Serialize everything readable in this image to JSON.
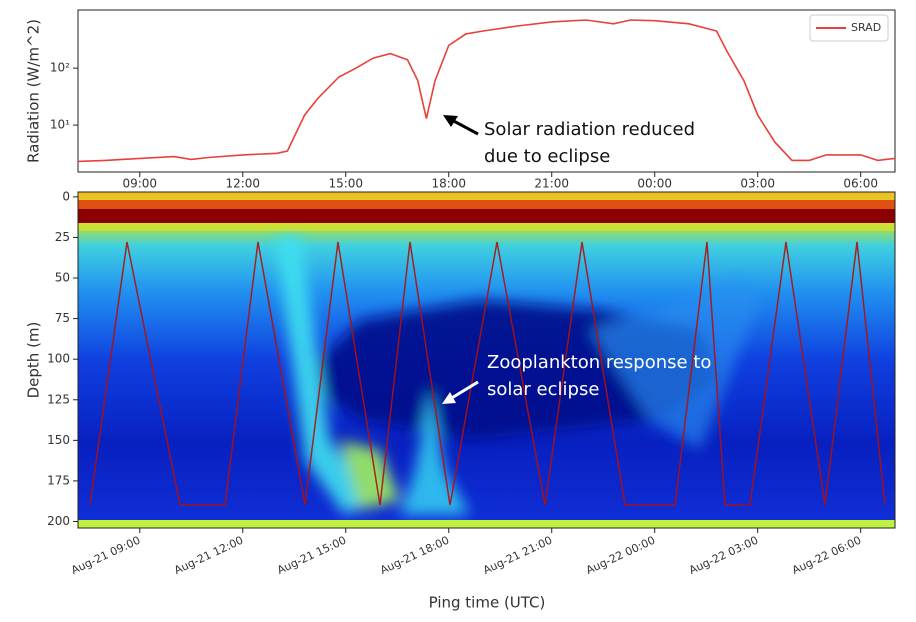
{
  "chart_data": [
    {
      "type": "line",
      "ylabel": "Radiation (W/m^2)",
      "log_y": true,
      "legend": "upper right",
      "series_name": "SRAD",
      "color": "#e8403a",
      "x": [
        7.2,
        8,
        9,
        10,
        10.5,
        11,
        12,
        13,
        13.3,
        13.8,
        14.2,
        14.8,
        15.3,
        15.8,
        16.3,
        16.8,
        17.1,
        17.35,
        17.6,
        18,
        18.5,
        19,
        20,
        21,
        22,
        22.8,
        23.3,
        24,
        25,
        25.8,
        26.1,
        26.6,
        27,
        27.5,
        28,
        28.5,
        29,
        30,
        30.5,
        31
      ],
      "values": [
        2.3,
        2.4,
        2.6,
        2.8,
        2.5,
        2.7,
        3.0,
        3.2,
        3.5,
        15,
        30,
        70,
        100,
        150,
        180,
        140,
        60,
        13,
        60,
        250,
        400,
        450,
        550,
        650,
        700,
        600,
        700,
        680,
        600,
        450,
        200,
        60,
        15,
        5,
        2.4,
        2.4,
        3,
        3,
        2.4,
        2.6
      ],
      "xlim": [
        7.2,
        31.0
      ],
      "xticks": [
        {
          "value": 9,
          "label": "09:00"
        },
        {
          "value": 12,
          "label": "12:00"
        },
        {
          "value": 15,
          "label": "15:00"
        },
        {
          "value": 18,
          "label": "18:00"
        },
        {
          "value": 21,
          "label": "21:00"
        },
        {
          "value": 24,
          "label": "00:00"
        },
        {
          "value": 27,
          "label": "03:00"
        },
        {
          "value": 30,
          "label": "06:00"
        }
      ],
      "ylim": [
        1.5,
        1050
      ],
      "yticks": [
        {
          "value": 10,
          "label": "10¹"
        },
        {
          "value": 100,
          "label": "10²"
        }
      ],
      "annotation": {
        "lines": [
          "Solar radiation reduced",
          "due to eclipse"
        ]
      }
    },
    {
      "type": "heatmap",
      "xlabel": "Ping time (UTC)",
      "ylabel": "Depth (m)",
      "y_inverted": true,
      "xlim": [
        7.2,
        31.0
      ],
      "xticks": [
        {
          "value": 9,
          "label": "Aug-21 09:00"
        },
        {
          "value": 12,
          "label": "Aug-21 12:00"
        },
        {
          "value": 15,
          "label": "Aug-21 15:00"
        },
        {
          "value": 18,
          "label": "Aug-21 18:00"
        },
        {
          "value": 21,
          "label": "Aug-21 21:00"
        },
        {
          "value": 24,
          "label": "Aug-22 00:00"
        },
        {
          "value": 27,
          "label": "Aug-22 03:00"
        },
        {
          "value": 30,
          "label": "Aug-22 06:00"
        }
      ],
      "ylim": [
        -3,
        204
      ],
      "yticks": [
        0,
        25,
        50,
        75,
        100,
        125,
        150,
        175,
        200
      ],
      "annotation": {
        "lines": [
          "Zooplankton response to",
          "solar eclipse"
        ]
      }
    }
  ]
}
